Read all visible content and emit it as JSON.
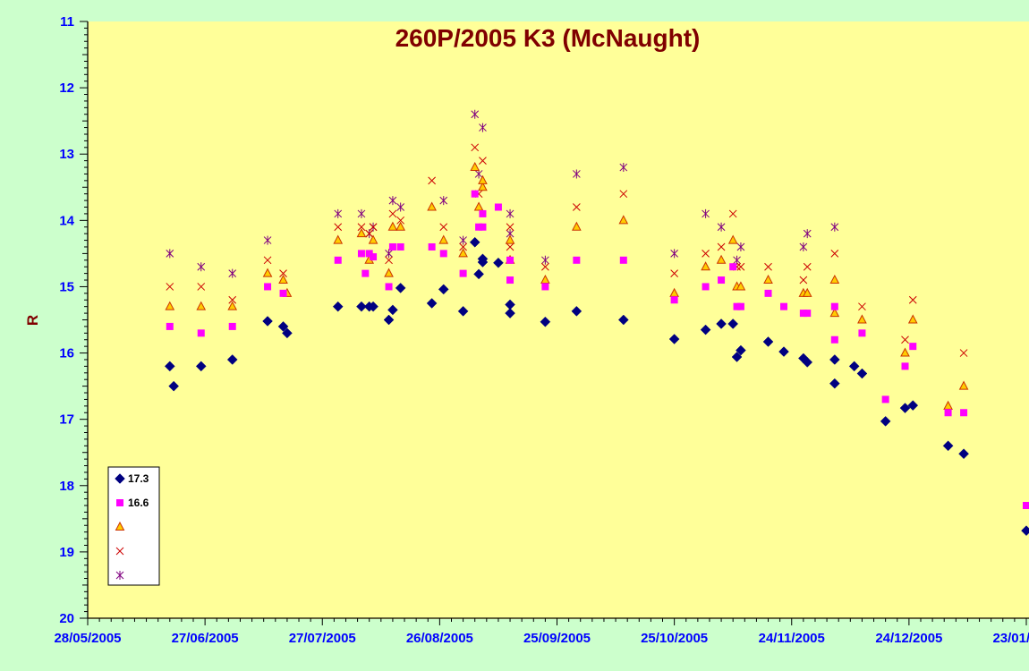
{
  "chart_data": {
    "type": "scatter",
    "title": "260P/2005 K3 (McNaught)",
    "xlabel": "",
    "ylabel": "R",
    "ylim": [
      11,
      20
    ],
    "y_inverted": true,
    "y_ticks": [
      "11",
      "12",
      "13",
      "14",
      "15",
      "16",
      "17",
      "18",
      "19",
      "20"
    ],
    "xlim": [
      "28/05/2005",
      "23/01/2006"
    ],
    "x_ticks": [
      "28/05/2005",
      "27/06/2005",
      "27/07/2005",
      "26/08/2005",
      "25/09/2005",
      "25/10/2005",
      "24/11/2005",
      "24/12/2005",
      "23/01/2006"
    ],
    "grid": false,
    "legend_position": "bottom-left",
    "colors": {
      "plot_background": "#ffff99",
      "page_background": "#ccffcc",
      "axis_text": "#0000ff",
      "title_text": "#800000"
    },
    "series": [
      {
        "name": "17.3",
        "marker": "diamond",
        "color": "#000080",
        "points": [
          {
            "x": "2005-06-18",
            "y": 16.2
          },
          {
            "x": "2005-06-19",
            "y": 16.5
          },
          {
            "x": "2005-06-26",
            "y": 16.2
          },
          {
            "x": "2005-07-04",
            "y": 16.1
          },
          {
            "x": "2005-07-13",
            "y": 15.52
          },
          {
            "x": "2005-07-17",
            "y": 15.6
          },
          {
            "x": "2005-07-18",
            "y": 15.7
          },
          {
            "x": "2005-07-31",
            "y": 15.3
          },
          {
            "x": "2005-08-06",
            "y": 15.3
          },
          {
            "x": "2005-08-08",
            "y": 15.3
          },
          {
            "x": "2005-08-09",
            "y": 15.3
          },
          {
            "x": "2005-08-13",
            "y": 15.5
          },
          {
            "x": "2005-08-14",
            "y": 15.35
          },
          {
            "x": "2005-08-16",
            "y": 15.02
          },
          {
            "x": "2005-08-24",
            "y": 15.25
          },
          {
            "x": "2005-08-27",
            "y": 15.04
          },
          {
            "x": "2005-09-01",
            "y": 15.37
          },
          {
            "x": "2005-09-04",
            "y": 14.33
          },
          {
            "x": "2005-09-05",
            "y": 14.81
          },
          {
            "x": "2005-09-06",
            "y": 14.58
          },
          {
            "x": "2005-09-06",
            "y": 14.63
          },
          {
            "x": "2005-09-10",
            "y": 14.64
          },
          {
            "x": "2005-09-13",
            "y": 15.27
          },
          {
            "x": "2005-09-13",
            "y": 15.4
          },
          {
            "x": "2005-09-22",
            "y": 15.53
          },
          {
            "x": "2005-09-30",
            "y": 15.37
          },
          {
            "x": "2005-10-12",
            "y": 15.5
          },
          {
            "x": "2005-10-25",
            "y": 15.79
          },
          {
            "x": "2005-11-02",
            "y": 15.65
          },
          {
            "x": "2005-11-06",
            "y": 15.56
          },
          {
            "x": "2005-11-09",
            "y": 15.56
          },
          {
            "x": "2005-11-10",
            "y": 16.06
          },
          {
            "x": "2005-11-11",
            "y": 15.96
          },
          {
            "x": "2005-11-18",
            "y": 15.83
          },
          {
            "x": "2005-11-22",
            "y": 15.98
          },
          {
            "x": "2005-11-27",
            "y": 16.08
          },
          {
            "x": "2005-11-28",
            "y": 16.14
          },
          {
            "x": "2005-12-05",
            "y": 16.1
          },
          {
            "x": "2005-12-05",
            "y": 16.46
          },
          {
            "x": "2005-12-10",
            "y": 16.2
          },
          {
            "x": "2005-12-12",
            "y": 16.31
          },
          {
            "x": "2005-12-18",
            "y": 17.03
          },
          {
            "x": "2005-12-23",
            "y": 16.83
          },
          {
            "x": "2005-12-25",
            "y": 16.79
          },
          {
            "x": "2006-01-03",
            "y": 17.4
          },
          {
            "x": "2006-01-07",
            "y": 17.52
          },
          {
            "x": "2006-01-23",
            "y": 18.68
          }
        ]
      },
      {
        "name": "16.6",
        "marker": "square",
        "color": "#ff00ff",
        "points": [
          {
            "x": "2005-06-18",
            "y": 15.6
          },
          {
            "x": "2005-06-26",
            "y": 15.7
          },
          {
            "x": "2005-07-04",
            "y": 15.6
          },
          {
            "x": "2005-07-13",
            "y": 15.0
          },
          {
            "x": "2005-07-17",
            "y": 15.1
          },
          {
            "x": "2005-07-31",
            "y": 14.6
          },
          {
            "x": "2005-08-06",
            "y": 14.5
          },
          {
            "x": "2005-08-07",
            "y": 14.8
          },
          {
            "x": "2005-08-08",
            "y": 14.5
          },
          {
            "x": "2005-08-09",
            "y": 14.55
          },
          {
            "x": "2005-08-13",
            "y": 15.0
          },
          {
            "x": "2005-08-14",
            "y": 14.4
          },
          {
            "x": "2005-08-16",
            "y": 14.4
          },
          {
            "x": "2005-08-24",
            "y": 14.4
          },
          {
            "x": "2005-08-27",
            "y": 14.5
          },
          {
            "x": "2005-09-01",
            "y": 14.8
          },
          {
            "x": "2005-09-04",
            "y": 13.6
          },
          {
            "x": "2005-09-05",
            "y": 14.1
          },
          {
            "x": "2005-09-06",
            "y": 13.9
          },
          {
            "x": "2005-09-06",
            "y": 14.1
          },
          {
            "x": "2005-09-10",
            "y": 13.8
          },
          {
            "x": "2005-09-13",
            "y": 14.6
          },
          {
            "x": "2005-09-13",
            "y": 14.9
          },
          {
            "x": "2005-09-22",
            "y": 15.0
          },
          {
            "x": "2005-09-30",
            "y": 14.6
          },
          {
            "x": "2005-10-12",
            "y": 14.6
          },
          {
            "x": "2005-10-25",
            "y": 15.2
          },
          {
            "x": "2005-11-02",
            "y": 15.0
          },
          {
            "x": "2005-11-06",
            "y": 14.9
          },
          {
            "x": "2005-11-09",
            "y": 14.7
          },
          {
            "x": "2005-11-10",
            "y": 15.3
          },
          {
            "x": "2005-11-11",
            "y": 15.3
          },
          {
            "x": "2005-11-18",
            "y": 15.1
          },
          {
            "x": "2005-11-22",
            "y": 15.3
          },
          {
            "x": "2005-11-27",
            "y": 15.4
          },
          {
            "x": "2005-11-28",
            "y": 15.4
          },
          {
            "x": "2005-12-05",
            "y": 15.3
          },
          {
            "x": "2005-12-05",
            "y": 15.8
          },
          {
            "x": "2005-12-12",
            "y": 15.7
          },
          {
            "x": "2005-12-18",
            "y": 16.7
          },
          {
            "x": "2005-12-23",
            "y": 16.2
          },
          {
            "x": "2005-12-25",
            "y": 15.9
          },
          {
            "x": "2006-01-03",
            "y": 16.9
          },
          {
            "x": "2006-01-07",
            "y": 16.9
          },
          {
            "x": "2006-01-23",
            "y": 18.3
          }
        ]
      },
      {
        "name": "",
        "marker": "triangle",
        "color": "#ff8c00",
        "points": [
          {
            "x": "2005-06-18",
            "y": 15.3
          },
          {
            "x": "2005-06-26",
            "y": 15.3
          },
          {
            "x": "2005-07-04",
            "y": 15.3
          },
          {
            "x": "2005-07-13",
            "y": 14.8
          },
          {
            "x": "2005-07-17",
            "y": 14.9
          },
          {
            "x": "2005-07-18",
            "y": 15.1
          },
          {
            "x": "2005-07-31",
            "y": 14.3
          },
          {
            "x": "2005-08-06",
            "y": 14.2
          },
          {
            "x": "2005-08-08",
            "y": 14.6
          },
          {
            "x": "2005-08-09",
            "y": 14.3
          },
          {
            "x": "2005-08-13",
            "y": 14.8
          },
          {
            "x": "2005-08-14",
            "y": 14.1
          },
          {
            "x": "2005-08-16",
            "y": 14.1
          },
          {
            "x": "2005-08-24",
            "y": 13.8
          },
          {
            "x": "2005-08-27",
            "y": 14.3
          },
          {
            "x": "2005-09-01",
            "y": 14.5
          },
          {
            "x": "2005-09-04",
            "y": 13.2
          },
          {
            "x": "2005-09-05",
            "y": 13.8
          },
          {
            "x": "2005-09-06",
            "y": 13.5
          },
          {
            "x": "2005-09-06",
            "y": 13.4
          },
          {
            "x": "2005-09-13",
            "y": 14.3
          },
          {
            "x": "2005-09-13",
            "y": 14.6
          },
          {
            "x": "2005-09-22",
            "y": 14.9
          },
          {
            "x": "2005-09-30",
            "y": 14.1
          },
          {
            "x": "2005-10-12",
            "y": 14.0
          },
          {
            "x": "2005-10-25",
            "y": 15.1
          },
          {
            "x": "2005-11-02",
            "y": 14.7
          },
          {
            "x": "2005-11-06",
            "y": 14.6
          },
          {
            "x": "2005-11-09",
            "y": 14.3
          },
          {
            "x": "2005-11-10",
            "y": 15.0
          },
          {
            "x": "2005-11-11",
            "y": 15.0
          },
          {
            "x": "2005-11-18",
            "y": 14.9
          },
          {
            "x": "2005-11-27",
            "y": 15.1
          },
          {
            "x": "2005-11-28",
            "y": 15.1
          },
          {
            "x": "2005-12-05",
            "y": 14.9
          },
          {
            "x": "2005-12-05",
            "y": 15.4
          },
          {
            "x": "2005-12-12",
            "y": 15.5
          },
          {
            "x": "2005-12-23",
            "y": 16.0
          },
          {
            "x": "2005-12-25",
            "y": 15.5
          },
          {
            "x": "2006-01-03",
            "y": 16.8
          },
          {
            "x": "2006-01-07",
            "y": 16.5
          }
        ]
      },
      {
        "name": "",
        "marker": "x",
        "color": "#cc0000",
        "points": [
          {
            "x": "2005-06-18",
            "y": 15.0
          },
          {
            "x": "2005-06-26",
            "y": 15.0
          },
          {
            "x": "2005-07-04",
            "y": 15.2
          },
          {
            "x": "2005-07-13",
            "y": 14.6
          },
          {
            "x": "2005-07-17",
            "y": 14.8
          },
          {
            "x": "2005-07-31",
            "y": 14.1
          },
          {
            "x": "2005-08-06",
            "y": 14.1
          },
          {
            "x": "2005-08-08",
            "y": 14.2
          },
          {
            "x": "2005-08-09",
            "y": 14.1
          },
          {
            "x": "2005-08-13",
            "y": 14.6
          },
          {
            "x": "2005-08-14",
            "y": 13.9
          },
          {
            "x": "2005-08-16",
            "y": 14.0
          },
          {
            "x": "2005-08-24",
            "y": 13.4
          },
          {
            "x": "2005-08-27",
            "y": 14.1
          },
          {
            "x": "2005-09-01",
            "y": 14.4
          },
          {
            "x": "2005-09-04",
            "y": 12.9
          },
          {
            "x": "2005-09-05",
            "y": 13.6
          },
          {
            "x": "2005-09-06",
            "y": 13.1
          },
          {
            "x": "2005-09-13",
            "y": 14.1
          },
          {
            "x": "2005-09-13",
            "y": 14.4
          },
          {
            "x": "2005-09-22",
            "y": 14.7
          },
          {
            "x": "2005-09-30",
            "y": 13.8
          },
          {
            "x": "2005-10-12",
            "y": 13.6
          },
          {
            "x": "2005-10-25",
            "y": 14.8
          },
          {
            "x": "2005-11-02",
            "y": 14.5
          },
          {
            "x": "2005-11-06",
            "y": 14.4
          },
          {
            "x": "2005-11-09",
            "y": 13.9
          },
          {
            "x": "2005-11-10",
            "y": 14.7
          },
          {
            "x": "2005-11-11",
            "y": 14.7
          },
          {
            "x": "2005-11-18",
            "y": 14.7
          },
          {
            "x": "2005-11-27",
            "y": 14.9
          },
          {
            "x": "2005-11-28",
            "y": 14.7
          },
          {
            "x": "2005-12-05",
            "y": 14.5
          },
          {
            "x": "2005-12-12",
            "y": 15.3
          },
          {
            "x": "2005-12-23",
            "y": 15.8
          },
          {
            "x": "2005-12-25",
            "y": 15.2
          },
          {
            "x": "2006-01-07",
            "y": 16.0
          }
        ]
      },
      {
        "name": "",
        "marker": "star",
        "color": "#800080",
        "points": [
          {
            "x": "2005-06-18",
            "y": 14.5
          },
          {
            "x": "2005-06-26",
            "y": 14.7
          },
          {
            "x": "2005-07-04",
            "y": 14.8
          },
          {
            "x": "2005-07-13",
            "y": 14.3
          },
          {
            "x": "2005-07-31",
            "y": 13.9
          },
          {
            "x": "2005-08-06",
            "y": 13.9
          },
          {
            "x": "2005-08-08",
            "y": 14.2
          },
          {
            "x": "2005-08-09",
            "y": 14.1
          },
          {
            "x": "2005-08-13",
            "y": 14.5
          },
          {
            "x": "2005-08-14",
            "y": 13.7
          },
          {
            "x": "2005-08-16",
            "y": 13.8
          },
          {
            "x": "2005-08-27",
            "y": 13.7
          },
          {
            "x": "2005-09-01",
            "y": 14.3
          },
          {
            "x": "2005-09-04",
            "y": 12.4
          },
          {
            "x": "2005-09-05",
            "y": 13.3
          },
          {
            "x": "2005-09-06",
            "y": 12.6
          },
          {
            "x": "2005-09-13",
            "y": 13.9
          },
          {
            "x": "2005-09-13",
            "y": 14.2
          },
          {
            "x": "2005-09-22",
            "y": 14.6
          },
          {
            "x": "2005-09-30",
            "y": 13.3
          },
          {
            "x": "2005-10-12",
            "y": 13.2
          },
          {
            "x": "2005-10-25",
            "y": 14.5
          },
          {
            "x": "2005-11-02",
            "y": 13.9
          },
          {
            "x": "2005-11-06",
            "y": 14.1
          },
          {
            "x": "2005-11-10",
            "y": 14.6
          },
          {
            "x": "2005-11-11",
            "y": 14.4
          },
          {
            "x": "2005-11-27",
            "y": 14.4
          },
          {
            "x": "2005-11-28",
            "y": 14.2
          },
          {
            "x": "2005-12-05",
            "y": 14.1
          }
        ]
      }
    ]
  }
}
